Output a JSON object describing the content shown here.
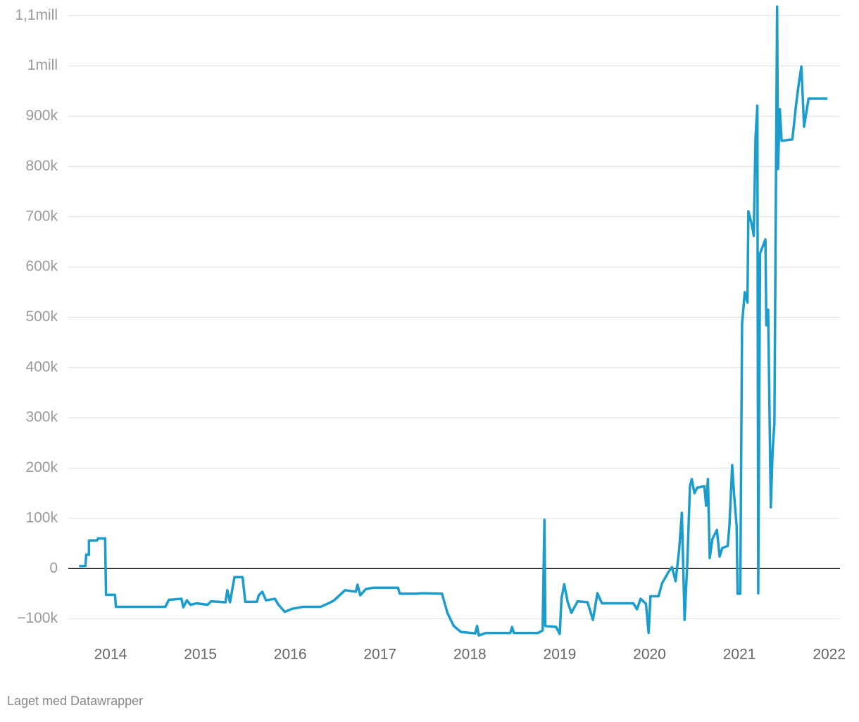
{
  "chart_data": {
    "type": "line",
    "credit": "Laget med Datawrapper",
    "x": [
      2013.65,
      2013.72,
      2013.73,
      2013.76,
      2013.76,
      2013.85,
      2013.86,
      2013.94,
      2013.95,
      2014.05,
      2014.06,
      2014.61,
      2014.65,
      2014.79,
      2014.81,
      2014.85,
      2014.89,
      2014.96,
      2015.08,
      2015.12,
      2015.28,
      2015.3,
      2015.33,
      2015.38,
      2015.47,
      2015.5,
      2015.63,
      2015.65,
      2015.69,
      2015.73,
      2015.83,
      2015.87,
      2015.94,
      2016.02,
      2016.14,
      2016.34,
      2016.45,
      2016.49,
      2016.61,
      2016.73,
      2016.75,
      2016.78,
      2016.84,
      2016.92,
      2017.2,
      2017.22,
      2017.39,
      2017.47,
      2017.69,
      2017.75,
      2017.82,
      2017.9,
      2018.06,
      2018.08,
      2018.1,
      2018.18,
      2018.45,
      2018.47,
      2018.49,
      2018.76,
      2018.81,
      2018.83,
      2018.84,
      2018.96,
      2019.0,
      2019.02,
      2019.05,
      2019.09,
      2019.13,
      2019.2,
      2019.31,
      2019.37,
      2019.42,
      2019.47,
      2019.82,
      2019.86,
      2019.9,
      2019.96,
      2019.99,
      2020.01,
      2020.1,
      2020.14,
      2020.21,
      2020.25,
      2020.29,
      2020.33,
      2020.36,
      2020.39,
      2020.42,
      2020.45,
      2020.47,
      2020.5,
      2020.53,
      2020.61,
      2020.63,
      2020.65,
      2020.67,
      2020.7,
      2020.75,
      2020.78,
      2020.81,
      2020.87,
      2020.89,
      2020.92,
      2020.94,
      2020.97,
      2020.98,
      2021.01,
      2021.03,
      2021.06,
      2021.09,
      2021.1,
      2021.14,
      2021.16,
      2021.18,
      2021.2,
      2021.21,
      2021.23,
      2021.26,
      2021.29,
      2021.3,
      2021.32,
      2021.35,
      2021.37,
      2021.39,
      2021.42,
      2021.43,
      2021.45,
      2021.47,
      2021.59,
      2021.63,
      2021.66,
      2021.69,
      2021.72,
      2021.77,
      2021.98
    ],
    "series": [
      {
        "color": "#1a9dcc",
        "values": [
          5000,
          5000,
          28000,
          28000,
          56000,
          56000,
          60000,
          60000,
          -52000,
          -52000,
          -76000,
          -76000,
          -62000,
          -60000,
          -77000,
          -63000,
          -72000,
          -69000,
          -72000,
          -65000,
          -67000,
          -43000,
          -67000,
          -17000,
          -17000,
          -66000,
          -66000,
          -53000,
          -46000,
          -63000,
          -60000,
          -72000,
          -86000,
          -80000,
          -76000,
          -76000,
          -67000,
          -63000,
          -43000,
          -46000,
          -32000,
          -53000,
          -41000,
          -38000,
          -38000,
          -50000,
          -50000,
          -49000,
          -50000,
          -88000,
          -114000,
          -126000,
          -129000,
          -114000,
          -133000,
          -128000,
          -128000,
          -116000,
          -128000,
          -128000,
          -123000,
          97000,
          -114000,
          -116000,
          -130000,
          -60000,
          -31000,
          -67000,
          -88000,
          -65000,
          -67000,
          -102000,
          -49000,
          -69000,
          -69000,
          -81000,
          -60000,
          -70000,
          -128000,
          -55000,
          -55000,
          -29000,
          -7000,
          3000,
          -25000,
          38000,
          111000,
          -102000,
          10000,
          164000,
          178000,
          150000,
          161000,
          164000,
          125000,
          178000,
          21000,
          59000,
          77000,
          24000,
          41000,
          45000,
          87000,
          206000,
          150000,
          83000,
          -50000,
          -50000,
          487000,
          550000,
          529000,
          711000,
          683000,
          662000,
          858000,
          921000,
          -49000,
          627000,
          641000,
          655000,
          484000,
          515000,
          122000,
          234000,
          290000,
          1118000,
          795000,
          914000,
          851000,
          854000,
          921000,
          963000,
          999000,
          879000,
          935000,
          935000
        ]
      }
    ],
    "xlim": [
      2013.53,
      2022.12
    ],
    "xticks": [
      2014,
      2015,
      2016,
      2017,
      2018,
      2019,
      2020,
      2021,
      2022
    ],
    "ylim": [
      -137000,
      1120000
    ],
    "yticks": [
      {
        "value": -100000,
        "label": "−100k"
      },
      0,
      {
        "value": 100000,
        "label": "100k"
      },
      {
        "value": 200000,
        "label": "200k"
      },
      {
        "value": 300000,
        "label": "300k"
      },
      {
        "value": 400000,
        "label": "400k"
      },
      {
        "value": 500000,
        "label": "500k"
      },
      {
        "value": 600000,
        "label": "600k"
      },
      {
        "value": 700000,
        "label": "700k"
      },
      {
        "value": 800000,
        "label": "800k"
      },
      {
        "value": 900000,
        "label": "900k"
      },
      {
        "value": 1000000,
        "label": "1mill"
      },
      {
        "value": 1100000,
        "label": "1,1mill"
      }
    ],
    "grid": true
  }
}
